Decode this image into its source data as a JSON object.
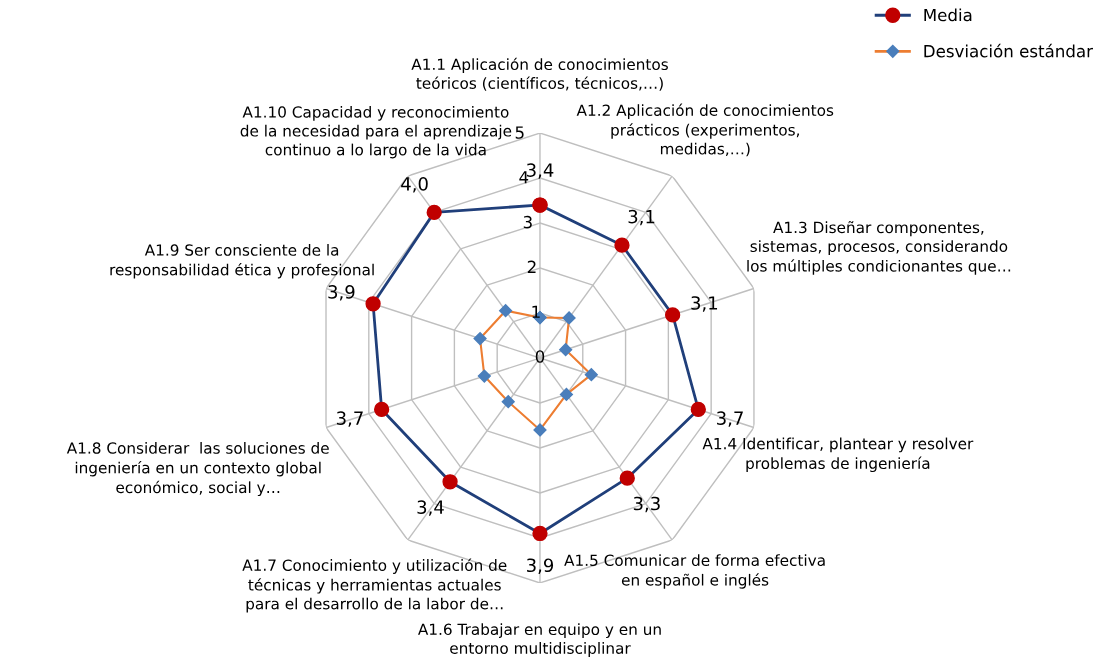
{
  "chart_data": {
    "type": "radar",
    "categories": [
      "A1.1 Aplicación de conocimientos\nteóricos (científicos, técnicos,…)",
      "A1.2 Aplicación de conocimientos\nprácticos (experimentos,\nmedidas,…)",
      "A1.3 Diseñar componentes,\nsistemas, procesos, considerando\nlos múltiples condicionantes que…",
      "A1.4 Identificar, plantear y resolver\nproblemas de ingeniería",
      "A1.5 Comunicar de forma efectiva\nen español e inglés",
      "A1.6 Trabajar en equipo y en un\nentorno multidisciplinar",
      "A1.7 Conocimiento y utilización de\ntécnicas y herramientas actuales\npara el desarrollo de la labor de…",
      "A1.8 Considerar  las soluciones de\ningeniería en un contexto global\neconómico, social y…",
      "A1.9 Ser consciente de la\nresponsabilidad ética y profesional",
      "A1.10 Capacidad y reconocimiento\nde la necesidad para el aprendizaje\ncontinuo a lo largo de la vida"
    ],
    "series": [
      {
        "name": "Media",
        "color": "#203f7a",
        "marker": "circle",
        "values": [
          3.4,
          3.1,
          3.1,
          3.7,
          3.3,
          3.9,
          3.4,
          3.7,
          3.9,
          4.0
        ],
        "value_labels": [
          "3,4",
          "3,1",
          "3,1",
          "3,7",
          "3,3",
          "3,9",
          "3,4",
          "3,7",
          "3,9",
          "4,0"
        ]
      },
      {
        "name": "Desviación estándar",
        "color": "#ed7d31",
        "marker": "diamond",
        "values": [
          0.9,
          1.1,
          0.6,
          1.2,
          1.0,
          1.6,
          1.2,
          1.3,
          1.4,
          1.3
        ]
      }
    ],
    "ylim": [
      0,
      5
    ],
    "yticks": [
      0,
      1,
      2,
      3,
      4,
      5
    ],
    "grid": true,
    "legend": "top right"
  }
}
